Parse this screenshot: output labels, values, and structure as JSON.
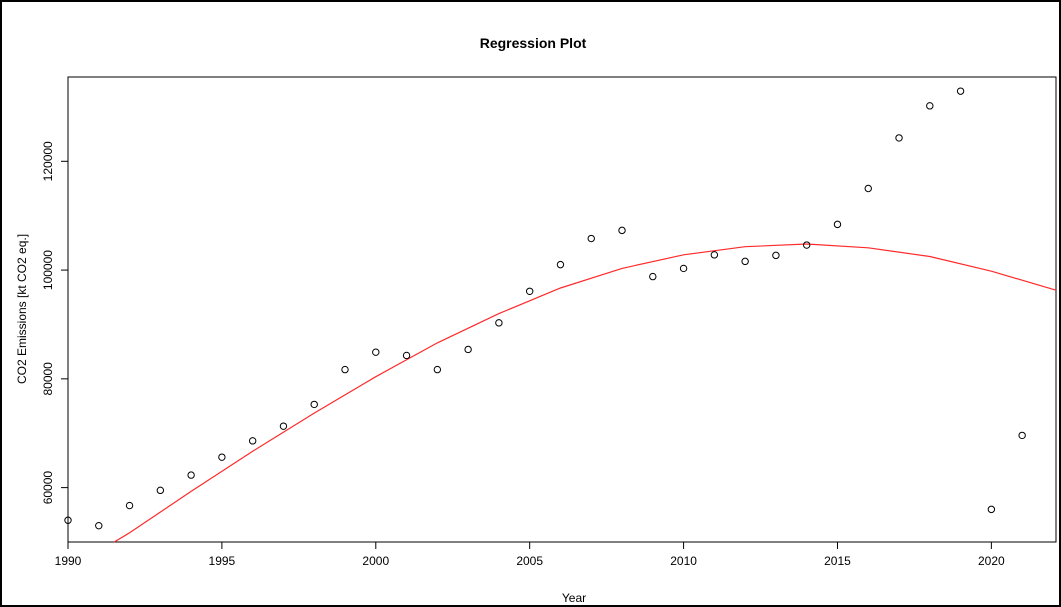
{
  "chart_data": {
    "type": "scatter",
    "title": "Regression Plot",
    "xlabel": "Year",
    "ylabel": "CO2 Emissions [kt CO2 eq.]",
    "xlim": [
      1990,
      2022.1
    ],
    "ylim": [
      50000,
      135500
    ],
    "x_ticks": [
      1990,
      1995,
      2000,
      2005,
      2010,
      2015,
      2020
    ],
    "y_ticks": [
      60000,
      80000,
      100000,
      120000
    ],
    "grid": false,
    "colors": {
      "points": "#000000",
      "fit_line": "#ff2a2a",
      "axes": "#000000"
    },
    "series": [
      {
        "kind": "points",
        "x": [
          1990,
          1991,
          1992,
          1993,
          1994,
          1995,
          1996,
          1997,
          1998,
          1999,
          2000,
          2001,
          2002,
          2003,
          2004,
          2005,
          2006,
          2007,
          2008,
          2009,
          2010,
          2011,
          2012,
          2013,
          2014,
          2015,
          2016,
          2017,
          2018,
          2019,
          2020,
          2021
        ],
        "y": [
          54000,
          53000,
          56700,
          59500,
          62300,
          65600,
          68600,
          71300,
          75300,
          81700,
          84900,
          84300,
          81700,
          85400,
          90300,
          96100,
          101000,
          105800,
          107300,
          98800,
          100300,
          102800,
          101600,
          102700,
          104600,
          108400,
          115000,
          124300,
          130200,
          132900,
          56000,
          69600
        ]
      },
      {
        "kind": "fit_line",
        "x": [
          1991.5,
          1992,
          1994,
          1996,
          1998,
          2000,
          2002,
          2004,
          2006,
          2008,
          2010,
          2012,
          2014,
          2016,
          2018,
          2020,
          2022.1
        ],
        "y": [
          50000,
          51700,
          59300,
          66700,
          73700,
          80400,
          86600,
          92000,
          96700,
          100300,
          102800,
          104300,
          104800,
          104100,
          102500,
          99800,
          96300
        ]
      }
    ]
  }
}
